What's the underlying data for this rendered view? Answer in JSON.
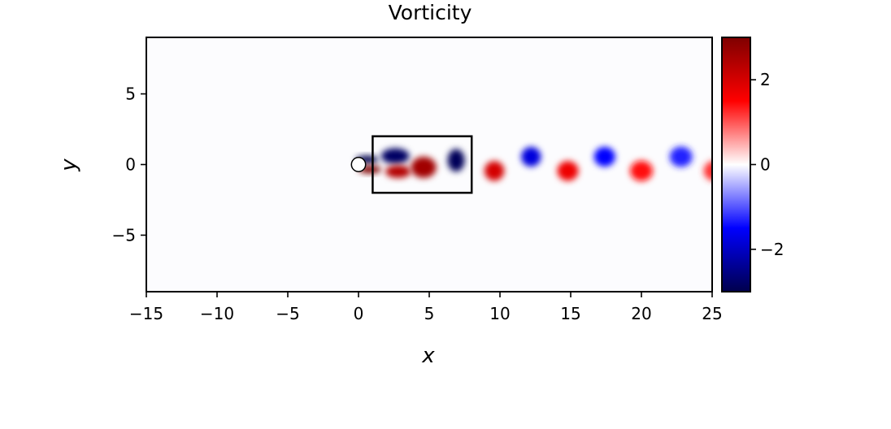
{
  "chart_data": {
    "type": "heatmap",
    "title": "Vorticity",
    "xlabel": "x",
    "ylabel": "y",
    "xlim": [
      -15,
      25
    ],
    "ylim": [
      -9,
      9
    ],
    "xticks": [
      -15,
      -10,
      -5,
      0,
      5,
      10,
      15,
      20,
      25
    ],
    "xtick_labels": [
      "−15",
      "−10",
      "−5",
      "0",
      "5",
      "10",
      "15",
      "20",
      "25"
    ],
    "yticks": [
      -5,
      0,
      5
    ],
    "ytick_labels": [
      "−5",
      "0",
      "5"
    ],
    "grid": false,
    "colormap": "seismic",
    "colorbar": {
      "range": [
        -3,
        3
      ],
      "ticks": [
        -2,
        0,
        2
      ],
      "tick_labels": [
        "−2",
        "0",
        "2"
      ],
      "colors": [
        "#00004c",
        "#0000ff",
        "#ffffff",
        "#ff0000",
        "#7f0000"
      ]
    },
    "cylinder": {
      "x": 0,
      "y": 0,
      "radius": 0.5
    },
    "box": {
      "x0": 1,
      "x1": 8,
      "y0": -2,
      "y1": 2
    },
    "vortices": [
      {
        "x": 0.6,
        "y": 0.35,
        "sx": 0.8,
        "sy": 0.28,
        "value": -3
      },
      {
        "x": 2.6,
        "y": 0.6,
        "sx": 1.0,
        "sy": 0.55,
        "value": -2.8
      },
      {
        "x": 0.8,
        "y": -0.35,
        "sx": 0.8,
        "sy": 0.28,
        "value": 3
      },
      {
        "x": 2.8,
        "y": -0.5,
        "sx": 0.9,
        "sy": 0.45,
        "value": 2.4
      },
      {
        "x": 4.6,
        "y": -0.2,
        "sx": 0.9,
        "sy": 0.75,
        "value": 2.6
      },
      {
        "x": 6.9,
        "y": 0.3,
        "sx": 0.6,
        "sy": 0.8,
        "value": -2.9
      },
      {
        "x": 9.6,
        "y": -0.45,
        "sx": 0.7,
        "sy": 0.7,
        "value": 2.0
      },
      {
        "x": 12.2,
        "y": 0.55,
        "sx": 0.7,
        "sy": 0.7,
        "value": -1.8
      },
      {
        "x": 14.8,
        "y": -0.45,
        "sx": 0.75,
        "sy": 0.7,
        "value": 1.7
      },
      {
        "x": 17.4,
        "y": 0.55,
        "sx": 0.75,
        "sy": 0.7,
        "value": -1.5
      },
      {
        "x": 20.0,
        "y": -0.45,
        "sx": 0.8,
        "sy": 0.72,
        "value": 1.4
      },
      {
        "x": 22.8,
        "y": 0.55,
        "sx": 0.8,
        "sy": 0.72,
        "value": -1.3
      },
      {
        "x": 25.2,
        "y": -0.45,
        "sx": 0.8,
        "sy": 0.72,
        "value": 1.2
      }
    ]
  }
}
